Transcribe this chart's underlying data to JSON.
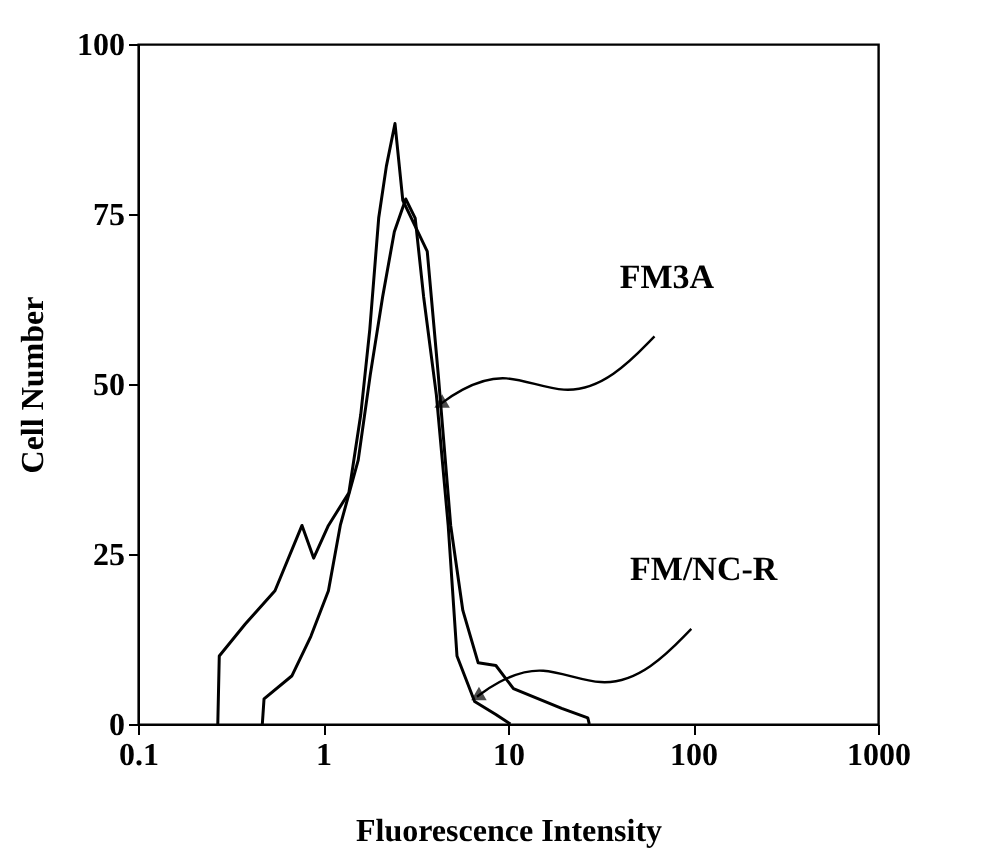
{
  "chart_data": {
    "type": "line",
    "xlabel": "Fluorescence Intensity",
    "ylabel": "Cell Number",
    "log": "x",
    "xlim": [
      0.1,
      1000
    ],
    "xticks": [
      0.1,
      1,
      10,
      100,
      1000
    ],
    "ylim": [
      0,
      100
    ],
    "yticks": [
      0,
      25,
      50,
      75,
      100
    ],
    "grid": false,
    "line_style": "solid",
    "marker": "none",
    "series": [
      {
        "color": "#000000",
        "x": [
          0.27,
          0.275,
          0.38,
          0.55,
          0.77,
          0.89,
          1.07,
          1.38,
          1.6,
          1.79,
          2.0,
          2.2,
          2.45,
          2.7,
          3.66,
          4.2,
          4.9,
          5.7,
          6.9,
          8.6,
          10.7,
          19.5,
          27,
          27.5
        ],
        "values": [
          0,
          10,
          14.7,
          19.6,
          29.2,
          24.4,
          29.2,
          34,
          45.5,
          58,
          74.4,
          82,
          88.3,
          77,
          69.5,
          51.3,
          29.2,
          16.7,
          9,
          8.6,
          5.2,
          2.3,
          0.9,
          0
        ]
      },
      {
        "color": "#000000",
        "x": [
          0.47,
          0.48,
          0.68,
          0.86,
          1.07,
          1.24,
          1.55,
          1.8,
          2.1,
          2.43,
          2.8,
          3.15,
          3.5,
          4.1,
          4.75,
          5.3,
          6.6,
          8.6,
          10.3
        ],
        "values": [
          0,
          3.7,
          7.1,
          12.9,
          19.6,
          29.2,
          38.8,
          51.3,
          62.8,
          72.4,
          77.2,
          74.4,
          62.8,
          48.4,
          29.2,
          10,
          3.3,
          1.4,
          0
        ]
      }
    ],
    "annotations": [
      {
        "text": "FM3A",
        "x": 4.3,
        "y": 47
      },
      {
        "text": "FM/NC-R",
        "x": 6.8,
        "y": 4
      }
    ]
  }
}
